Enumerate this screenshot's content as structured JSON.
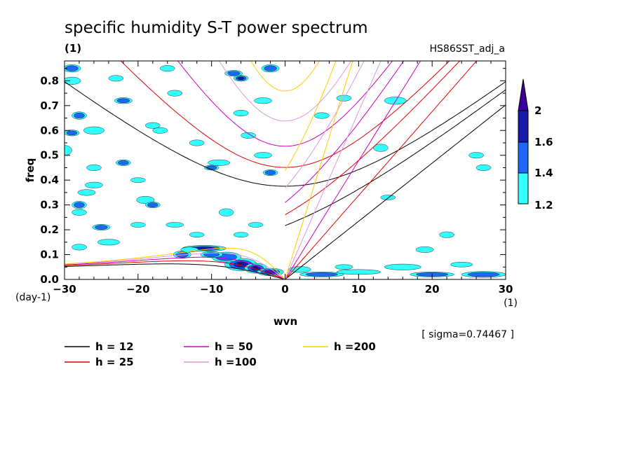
{
  "chart_data": {
    "type": "contour",
    "title": "specific humidity S-T power spectrum",
    "unit_top_left": "(1)",
    "run_label": "HS86SST_adj_a",
    "xlabel": "wvn",
    "xunit": "(1)",
    "ylabel": "freq",
    "yunit": "(day-1)",
    "xlim": [
      -30,
      30
    ],
    "ylim": [
      0,
      0.88
    ],
    "xticks": [
      -30,
      -20,
      -10,
      0,
      10,
      20,
      30
    ],
    "yticks": [
      0.0,
      0.1,
      0.2,
      0.3,
      0.4,
      0.5,
      0.6,
      0.7,
      0.8
    ],
    "ytick_labels": [
      "0.0",
      "0.1",
      "0.2",
      "0.3",
      "0.4",
      "0.5",
      "0.6",
      "0.7",
      "0.8"
    ],
    "sigma_note": "[ sigma=0.74467 ]",
    "colorbar": {
      "levels": [
        "1.2",
        "1.4",
        "1.6",
        "2"
      ],
      "colors": [
        "#33ffff",
        "#1f66ff",
        "#1a1aaa",
        "#3b0099"
      ]
    },
    "dispersion_curves": [
      {
        "label": "h = 12",
        "h": 12,
        "color": "#000000"
      },
      {
        "label": "h = 25",
        "h": 25,
        "color": "#e00000"
      },
      {
        "label": "h = 50",
        "h": 50,
        "color": "#d000c0"
      },
      {
        "label": "h =100",
        "h": 100,
        "color": "#dd99dd"
      },
      {
        "label": "h =200",
        "h": 200,
        "color": "#ffcc00"
      }
    ],
    "blobs": [
      [
        -6,
        0.06,
        2.2,
        0.025,
        3
      ],
      [
        -4,
        0.045,
        1.5,
        0.02,
        3
      ],
      [
        -11,
        0.125,
        3,
        0.012,
        2
      ],
      [
        -2,
        0.03,
        1.8,
        0.015,
        2
      ],
      [
        -8,
        0.09,
        2,
        0.02,
        1
      ],
      [
        -14,
        0.1,
        1.2,
        0.015,
        1
      ],
      [
        5,
        0.02,
        3,
        0.01,
        1
      ],
      [
        10,
        0.03,
        3,
        0.01,
        0
      ],
      [
        16,
        0.05,
        2.5,
        0.012,
        0
      ],
      [
        20,
        0.02,
        3,
        0.01,
        1
      ],
      [
        27,
        0.02,
        3,
        0.012,
        1
      ],
      [
        24,
        0.06,
        1.5,
        0.01,
        0
      ],
      [
        -28,
        0.3,
        1,
        0.015,
        1
      ],
      [
        -27,
        0.35,
        1.2,
        0.012,
        0
      ],
      [
        -22,
        0.47,
        1,
        0.012,
        1
      ],
      [
        -26,
        0.38,
        1.2,
        0.012,
        0
      ],
      [
        -19,
        0.32,
        1.2,
        0.015,
        0
      ],
      [
        -18,
        0.3,
        1,
        0.012,
        1
      ],
      [
        -28,
        0.66,
        1,
        0.015,
        1
      ],
      [
        -26,
        0.6,
        1.4,
        0.015,
        0
      ],
      [
        -29,
        0.59,
        1,
        0.012,
        1
      ],
      [
        -22,
        0.72,
        1.2,
        0.012,
        1
      ],
      [
        -26,
        0.45,
        1,
        0.012,
        0
      ],
      [
        -30,
        0.52,
        1,
        0.02,
        0
      ],
      [
        -7,
        0.83,
        1.2,
        0.012,
        1
      ],
      [
        -6,
        0.81,
        1,
        0.012,
        2
      ],
      [
        -2,
        0.85,
        1.2,
        0.015,
        1
      ],
      [
        -6,
        0.67,
        1,
        0.012,
        0
      ],
      [
        -9,
        0.47,
        1.5,
        0.012,
        0
      ],
      [
        -10,
        0.45,
        1,
        0.01,
        1
      ],
      [
        -8,
        0.27,
        1,
        0.015,
        0
      ],
      [
        -13,
        0.12,
        1.2,
        0.01,
        0
      ],
      [
        -24,
        0.15,
        1.5,
        0.012,
        0
      ],
      [
        -25,
        0.21,
        1.2,
        0.012,
        1
      ],
      [
        -20,
        0.22,
        1,
        0.01,
        0
      ],
      [
        -15,
        0.22,
        1.2,
        0.01,
        0
      ],
      [
        -12,
        0.18,
        1,
        0.01,
        0
      ],
      [
        -4,
        0.22,
        1,
        0.01,
        0
      ],
      [
        -3,
        0.5,
        1.2,
        0.012,
        0
      ],
      [
        -2,
        0.43,
        1,
        0.012,
        1
      ],
      [
        -5,
        0.58,
        1,
        0.012,
        0
      ],
      [
        -3,
        0.72,
        1.2,
        0.012,
        0
      ],
      [
        5,
        0.66,
        1,
        0.012,
        0
      ],
      [
        15,
        0.72,
        1.5,
        0.015,
        0
      ],
      [
        13,
        0.53,
        1,
        0.015,
        0
      ],
      [
        27,
        0.45,
        1,
        0.012,
        0
      ],
      [
        26,
        0.5,
        1,
        0.012,
        0
      ],
      [
        22,
        0.18,
        1,
        0.012,
        0
      ],
      [
        19,
        0.12,
        1.2,
        0.012,
        0
      ],
      [
        8,
        0.73,
        1,
        0.012,
        0
      ],
      [
        -15,
        0.75,
        1,
        0.012,
        0
      ],
      [
        -12,
        0.55,
        1,
        0.012,
        0
      ],
      [
        -17,
        0.6,
        1,
        0.012,
        0
      ],
      [
        -29,
        0.8,
        1.2,
        0.015,
        0
      ],
      [
        -29,
        0.85,
        1.2,
        0.015,
        1
      ],
      [
        -16,
        0.85,
        1,
        0.012,
        0
      ],
      [
        2,
        0.04,
        1.5,
        0.012,
        0
      ],
      [
        8,
        0.05,
        1.2,
        0.01,
        0
      ],
      [
        -28,
        0.13,
        1,
        0.012,
        0
      ],
      [
        -28,
        0.27,
        1,
        0.012,
        0
      ],
      [
        -18,
        0.62,
        1,
        0.012,
        0
      ],
      [
        -23,
        0.81,
        1,
        0.012,
        0
      ],
      [
        14,
        0.33,
        1,
        0.01,
        0
      ],
      [
        -6,
        0.18,
        1,
        0.01,
        0
      ],
      [
        -20,
        0.4,
        1,
        0.01,
        0
      ],
      [
        -10,
        0.1,
        1.5,
        0.012,
        1
      ]
    ]
  }
}
